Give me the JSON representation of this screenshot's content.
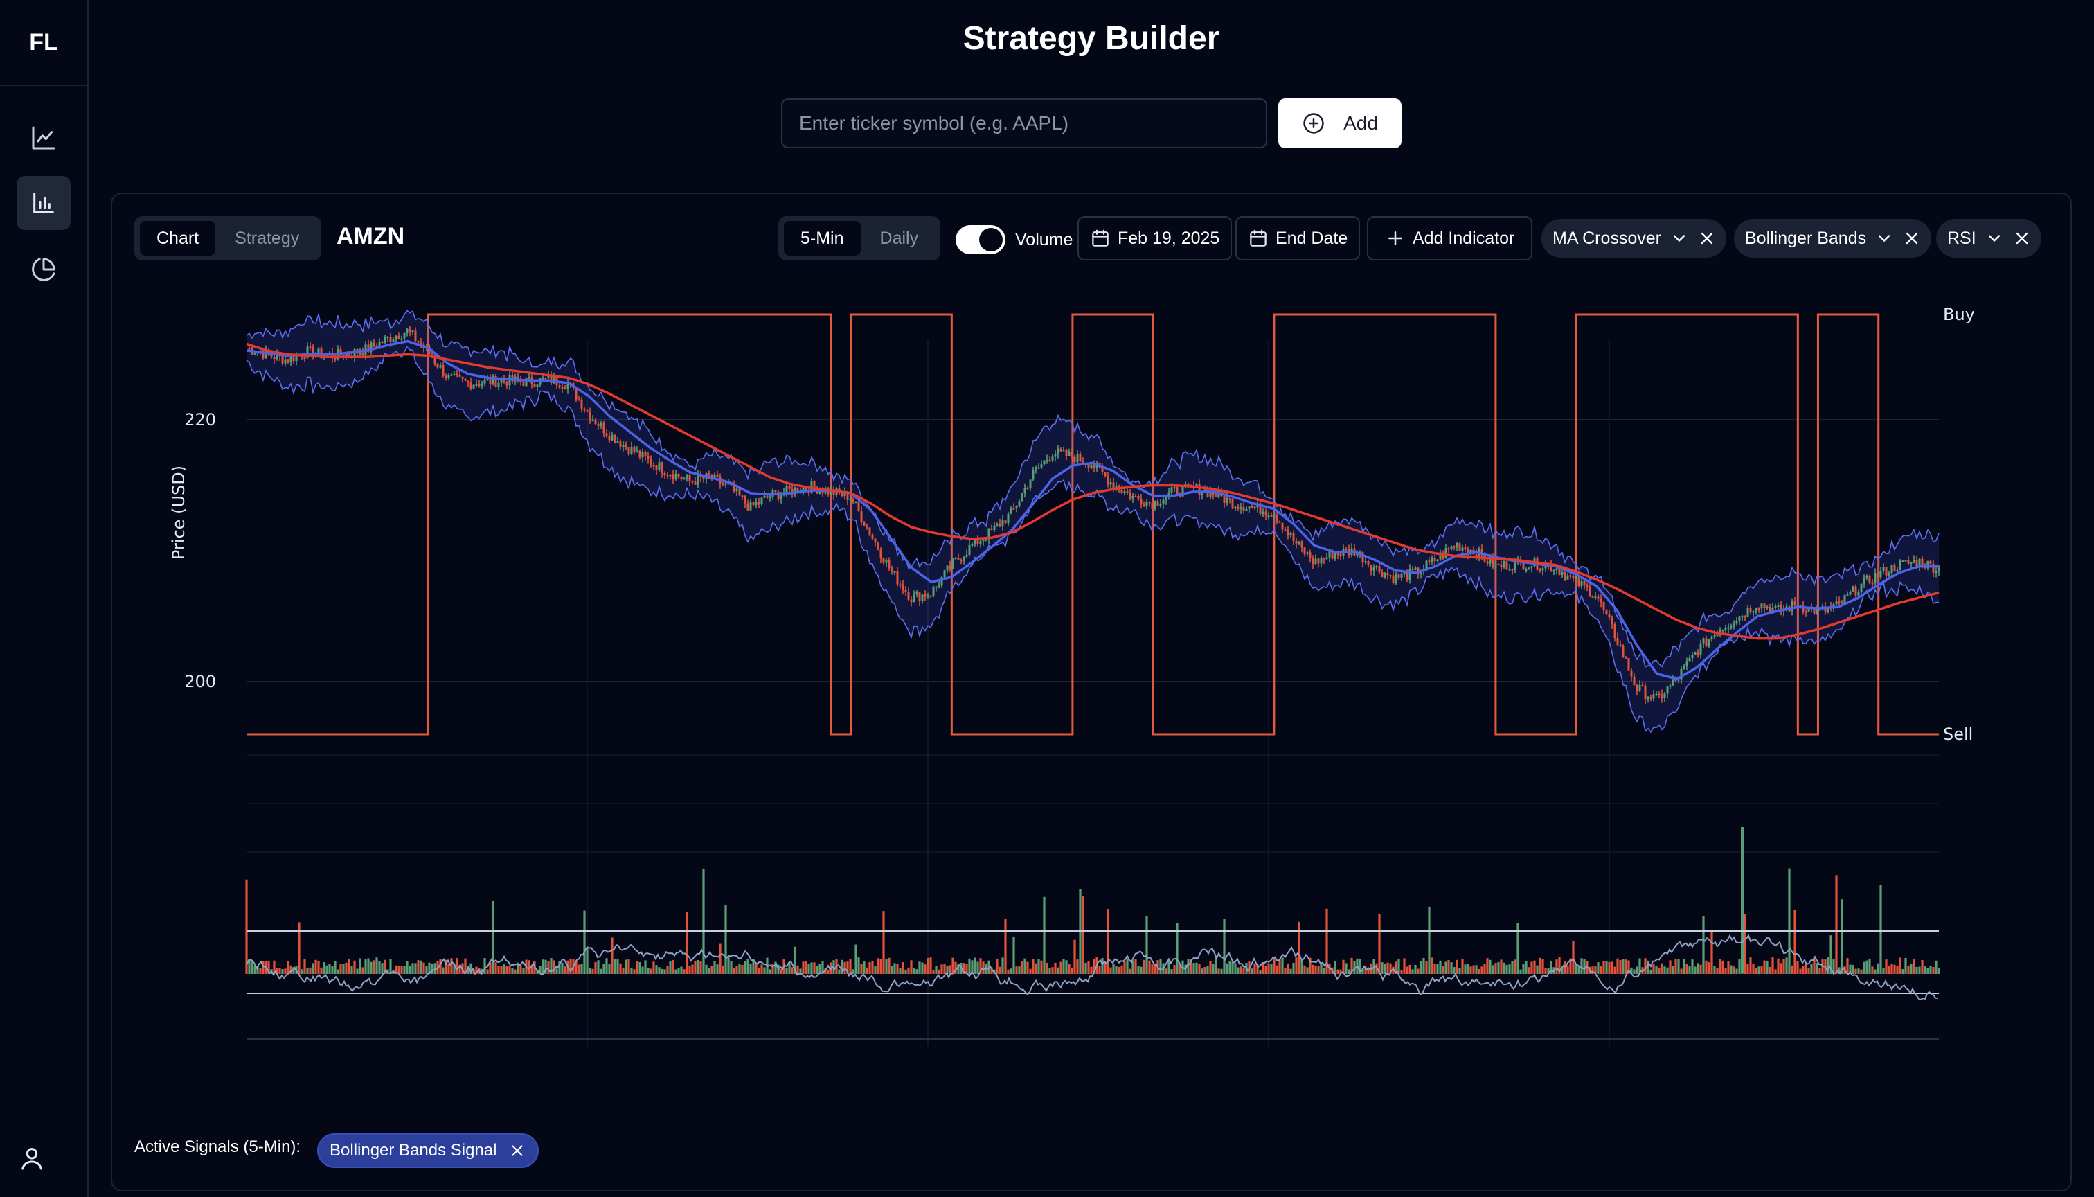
{
  "app": {
    "logo": "FL",
    "title": "Strategy Builder",
    "sidebar": [
      {
        "icon": "line-chart-icon"
      },
      {
        "icon": "bar-chart-icon"
      },
      {
        "icon": "pie-chart-icon"
      }
    ],
    "user_icon": "user-icon"
  },
  "search": {
    "placeholder": "Enter ticker symbol (e.g. AAPL)",
    "value": "",
    "add_label": "Add"
  },
  "toolbar": {
    "view_tabs": [
      "Chart",
      "Strategy"
    ],
    "active_view": "Chart",
    "symbol": "AMZN",
    "intervals": [
      "5-Min",
      "Daily"
    ],
    "active_interval": "5-Min",
    "volume_label": "Volume",
    "volume_on": true,
    "start_date": "Feb 19, 2025",
    "end_date": "End Date",
    "add_indicator": "Add Indicator",
    "indicators": [
      "MA Crossover",
      "Bollinger Bands",
      "RSI"
    ]
  },
  "footer": {
    "active_signals_label": "Active Signals (5-Min):",
    "signals": [
      "Bollinger Bands Signal"
    ]
  },
  "colors": {
    "background": "#040816",
    "candle_up": "#5a9e76",
    "candle_down": "#e2533a",
    "ma_fast": "#4a63e8",
    "ma_slow": "#e23a2e",
    "bollinger": "#5b6ef0",
    "signal_line": "#e35b3c",
    "rsi_line": "#8ea2c4"
  },
  "chart_data": {
    "type": "line",
    "ylabel": "Price (USD)",
    "yticks": [
      200,
      220
    ],
    "ylim": [
      197,
      228
    ],
    "signal_labels": [
      "Buy",
      "Sell"
    ],
    "price_series": [
      {
        "name": "Close",
        "values": [
          225.5,
          225.0,
          224.6,
          225.2,
          224.9,
          225.0,
          225.4,
          226.2,
          226.8,
          225.2,
          223.2,
          222.8,
          222.9,
          223.0,
          222.9,
          223.1,
          222.7,
          220.4,
          218.9,
          217.8,
          216.8,
          216.0,
          215.3,
          215.6,
          214.8,
          213.3,
          214.2,
          214.6,
          214.9,
          214.5,
          214.1,
          211.2,
          208.4,
          206.4,
          206.8,
          208.9,
          210.4,
          211.5,
          212.9,
          215.8,
          217.5,
          217.2,
          216.6,
          215.1,
          214.1,
          213.6,
          214.5,
          214.8,
          214.4,
          213.6,
          213.3,
          212.9,
          210.7,
          209.1,
          209.8,
          210.0,
          208.7,
          207.9,
          208.3,
          209.3,
          210.5,
          209.9,
          208.8,
          209.0,
          209.0,
          208.7,
          207.6,
          206.6,
          203.3,
          199.5,
          198.6,
          200.2,
          202.4,
          203.9,
          204.9,
          206.0,
          205.4,
          205.9,
          205.3,
          205.8,
          207.2,
          208.2,
          208.9,
          209.2,
          208.6
        ]
      },
      {
        "name": "MA Fast",
        "values": [
          225.3,
          225.1,
          224.9,
          225.0,
          225.0,
          225.1,
          225.3,
          225.7,
          226.0,
          225.5,
          224.3,
          223.5,
          223.2,
          223.1,
          223.0,
          223.0,
          222.8,
          221.8,
          220.3,
          219.1,
          217.9,
          216.9,
          216.0,
          215.6,
          215.2,
          214.4,
          214.3,
          214.4,
          214.6,
          214.6,
          214.4,
          213.1,
          210.9,
          208.7,
          207.6,
          208.0,
          209.1,
          210.3,
          211.6,
          213.5,
          215.5,
          216.5,
          216.7,
          216.1,
          215.0,
          214.2,
          214.2,
          214.5,
          214.5,
          214.1,
          213.6,
          213.2,
          212.0,
          210.4,
          209.9,
          209.9,
          209.3,
          208.5,
          208.3,
          208.8,
          209.6,
          209.9,
          209.5,
          209.2,
          209.0,
          208.8,
          208.2,
          207.3,
          205.5,
          202.8,
          200.6,
          200.2,
          201.1,
          202.5,
          203.8,
          205.0,
          205.4,
          205.7,
          205.6,
          205.7,
          206.4,
          207.4,
          208.3,
          208.8,
          208.8
        ]
      },
      {
        "name": "MA Slow",
        "values": [
          225.8,
          225.3,
          225.0,
          224.9,
          224.8,
          224.8,
          224.8,
          224.9,
          225.0,
          224.9,
          224.6,
          224.3,
          224.0,
          223.8,
          223.6,
          223.4,
          223.2,
          222.7,
          222.0,
          221.2,
          220.4,
          219.6,
          218.8,
          218.0,
          217.2,
          216.4,
          215.6,
          215.1,
          214.8,
          214.6,
          214.4,
          213.6,
          212.6,
          211.8,
          211.4,
          211.1,
          210.9,
          211.0,
          211.4,
          212.2,
          213.1,
          213.9,
          214.4,
          214.7,
          214.9,
          215.0,
          215.0,
          214.9,
          214.7,
          214.4,
          214.0,
          213.6,
          213.1,
          212.6,
          212.1,
          211.6,
          211.1,
          210.6,
          210.1,
          209.8,
          209.6,
          209.5,
          209.4,
          209.3,
          209.1,
          208.9,
          208.4,
          207.8,
          207.1,
          206.3,
          205.5,
          204.7,
          204.1,
          203.7,
          203.5,
          203.3,
          203.3,
          203.6,
          204.0,
          204.5,
          205.0,
          205.5,
          206.0,
          206.4,
          206.8
        ]
      }
    ],
    "signal_state": [
      0,
      0,
      0,
      0,
      0,
      0,
      0,
      0,
      0,
      1,
      1,
      1,
      1,
      1,
      1,
      1,
      1,
      1,
      1,
      1,
      1,
      1,
      1,
      1,
      1,
      1,
      1,
      1,
      1,
      0,
      1,
      1,
      1,
      1,
      1,
      0,
      0,
      0,
      0,
      0,
      0,
      1,
      1,
      1,
      1,
      0,
      0,
      0,
      0,
      0,
      0,
      1,
      1,
      1,
      1,
      1,
      1,
      1,
      1,
      1,
      1,
      1,
      0,
      0,
      0,
      0,
      1,
      1,
      1,
      1,
      1,
      1,
      1,
      1,
      1,
      1,
      1,
      0,
      1,
      1,
      1,
      0,
      0,
      0,
      0
    ]
  }
}
